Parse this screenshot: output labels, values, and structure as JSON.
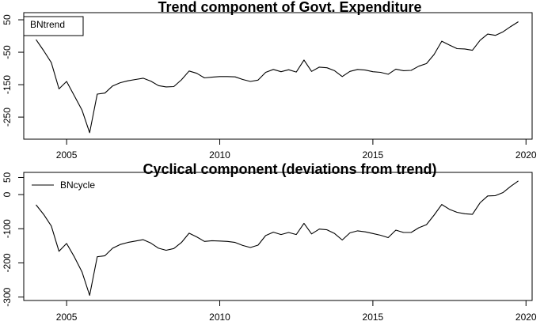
{
  "chart_data": [
    {
      "type": "line",
      "title": "Trend component of Govt. Expenditure",
      "xlabel": "",
      "ylabel": "",
      "xlim": [
        2003.6,
        2020.2
      ],
      "ylim": [
        -318,
        72
      ],
      "xticks": [
        2005,
        2010,
        2015,
        2020
      ],
      "yticks": [
        50,
        -50,
        -150,
        -250
      ],
      "legend": {
        "placement": "top-left",
        "boxed": true
      },
      "series": [
        {
          "name": "BNtrend",
          "color": "#000000",
          "x": [
            2004.0,
            2004.25,
            2004.5,
            2004.75,
            2005.0,
            2005.25,
            2005.5,
            2005.75,
            2006.0,
            2006.25,
            2006.5,
            2006.75,
            2007.0,
            2007.25,
            2007.5,
            2007.75,
            2008.0,
            2008.25,
            2008.5,
            2008.75,
            2009.0,
            2009.25,
            2009.5,
            2009.75,
            2010.0,
            2010.25,
            2010.5,
            2010.75,
            2011.0,
            2011.25,
            2011.5,
            2011.75,
            2012.0,
            2012.25,
            2012.5,
            2012.75,
            2013.0,
            2013.25,
            2013.5,
            2013.75,
            2014.0,
            2014.25,
            2014.5,
            2014.75,
            2015.0,
            2015.25,
            2015.5,
            2015.75,
            2016.0,
            2016.25,
            2016.5,
            2016.75,
            2017.0,
            2017.25,
            2017.5,
            2017.75,
            2018.0,
            2018.25,
            2018.5,
            2018.75,
            2019.0,
            2019.25,
            2019.5,
            2019.75
          ],
          "y": [
            -11,
            -45,
            -82,
            -163,
            -140,
            -184,
            -228,
            -298,
            -179,
            -176,
            -154,
            -144,
            -138,
            -134,
            -130,
            -139,
            -153,
            -157,
            -156,
            -135,
            -108,
            -115,
            -129,
            -127,
            -125,
            -125,
            -126,
            -134,
            -140,
            -136,
            -112,
            -103,
            -110,
            -104,
            -111,
            -74,
            -109,
            -96,
            -98,
            -107,
            -125,
            -109,
            -103,
            -105,
            -110,
            -112,
            -118,
            -102,
            -107,
            -106,
            -93,
            -85,
            -57,
            -16,
            -28,
            -39,
            -40,
            -44,
            -13,
            6,
            2,
            13,
            29,
            44
          ]
        }
      ]
    },
    {
      "type": "line",
      "title": "Cyclical component (deviations from trend)",
      "xlabel": "",
      "ylabel": "",
      "xlim": [
        2003.6,
        2020.2
      ],
      "ylim": [
        -310,
        65
      ],
      "xticks": [
        2005,
        2010,
        2015,
        2020
      ],
      "yticks": [
        50,
        0,
        -100,
        -200,
        -300
      ],
      "legend": {
        "placement": "top-left",
        "boxed": false
      },
      "series": [
        {
          "name": "BNcycle",
          "color": "#000000",
          "x": [
            2004.0,
            2004.25,
            2004.5,
            2004.75,
            2005.0,
            2005.25,
            2005.5,
            2005.75,
            2006.0,
            2006.25,
            2006.5,
            2006.75,
            2007.0,
            2007.25,
            2007.5,
            2007.75,
            2008.0,
            2008.25,
            2008.5,
            2008.75,
            2009.0,
            2009.25,
            2009.5,
            2009.75,
            2010.0,
            2010.25,
            2010.5,
            2010.75,
            2011.0,
            2011.25,
            2011.5,
            2011.75,
            2012.0,
            2012.25,
            2012.5,
            2012.75,
            2013.0,
            2013.25,
            2013.5,
            2013.75,
            2014.0,
            2014.25,
            2014.5,
            2014.75,
            2015.0,
            2015.25,
            2015.5,
            2015.75,
            2016.0,
            2016.25,
            2016.5,
            2016.75,
            2017.0,
            2017.25,
            2017.5,
            2017.75,
            2018.0,
            2018.25,
            2018.5,
            2018.75,
            2019.0,
            2019.25,
            2019.5,
            2019.75
          ],
          "y": [
            -30,
            -58,
            -92,
            -166,
            -143,
            -182,
            -226,
            -295,
            -182,
            -179,
            -157,
            -146,
            -140,
            -136,
            -132,
            -142,
            -157,
            -163,
            -158,
            -140,
            -113,
            -124,
            -137,
            -135,
            -136,
            -137,
            -140,
            -149,
            -155,
            -148,
            -120,
            -110,
            -117,
            -111,
            -117,
            -84,
            -115,
            -101,
            -103,
            -114,
            -133,
            -112,
            -106,
            -109,
            -114,
            -119,
            -126,
            -104,
            -111,
            -111,
            -97,
            -88,
            -60,
            -29,
            -43,
            -52,
            -56,
            -58,
            -24,
            -4,
            -3,
            6,
            24,
            40
          ]
        }
      ]
    }
  ]
}
